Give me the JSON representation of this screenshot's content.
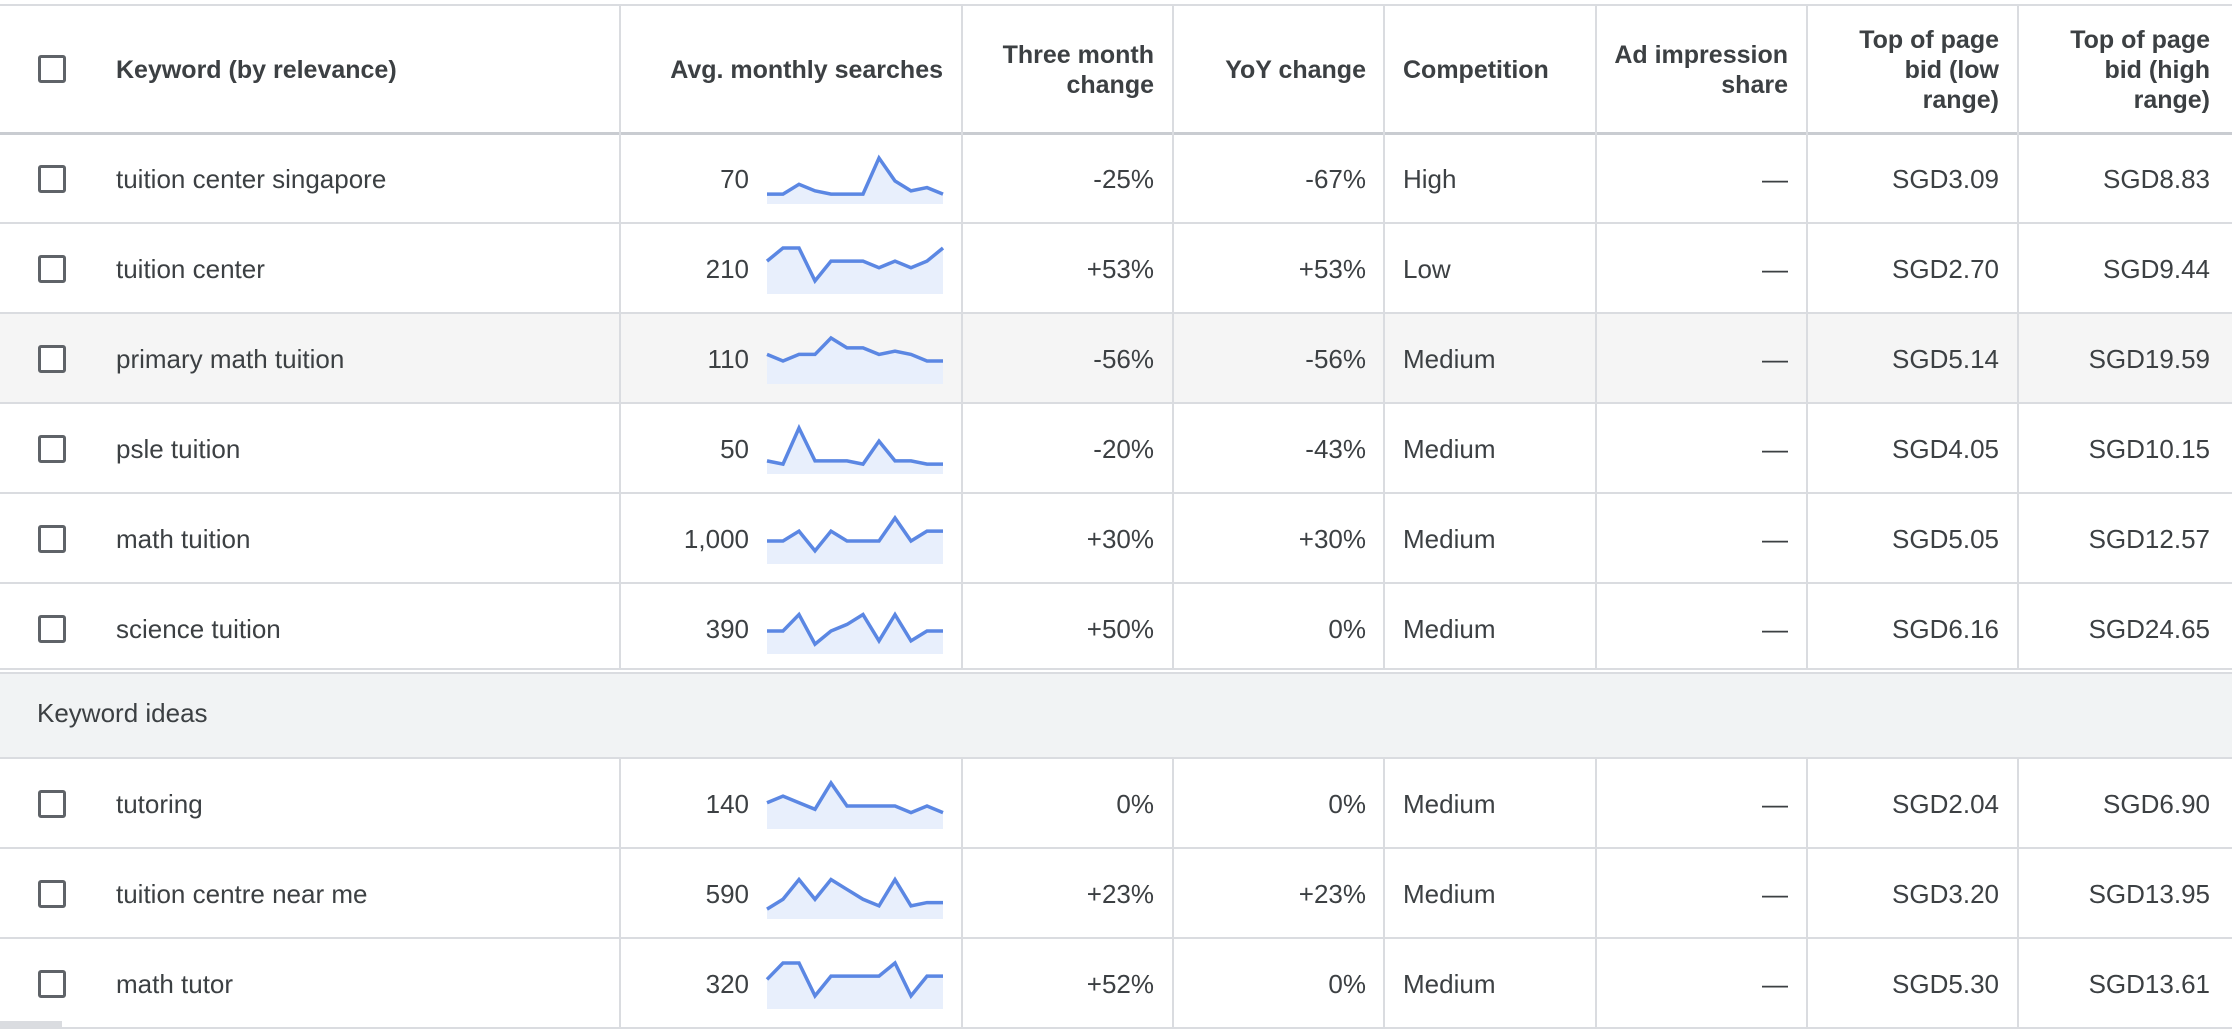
{
  "headers": {
    "keyword": "Keyword (by relevance)",
    "avg": "Avg. monthly searches",
    "three_month_line1": "Three month",
    "three_month_line2": "change",
    "yoy": "YoY change",
    "competition": "Competition",
    "ad_share_line1": "Ad impression",
    "ad_share_line2": "share",
    "bid_low_line1": "Top of page",
    "bid_low_line2": "bid (low",
    "bid_low_line3": "range)",
    "bid_high_line1": "Top of page",
    "bid_high_line2": "bid (high",
    "bid_high_line3": "range)"
  },
  "section_label": "Keyword ideas",
  "rows": [
    {
      "keyword": "tuition center singapore",
      "avg": "70",
      "three_month": "-25%",
      "yoy": "-67%",
      "competition": "High",
      "ad_share": "—",
      "bid_low": "SGD3.09",
      "bid_high": "SGD8.83",
      "trend": [
        3,
        3,
        6,
        4,
        3,
        3,
        3,
        14,
        7,
        4,
        5,
        3
      ]
    },
    {
      "keyword": "tuition center",
      "avg": "210",
      "three_month": "+53%",
      "yoy": "+53%",
      "competition": "Low",
      "ad_share": "—",
      "bid_low": "SGD2.70",
      "bid_high": "SGD9.44",
      "trend": [
        10,
        14,
        14,
        4,
        10,
        10,
        10,
        8,
        10,
        8,
        10,
        14
      ]
    },
    {
      "keyword": "primary math tuition",
      "avg": "110",
      "three_month": "-56%",
      "yoy": "-56%",
      "competition": "Medium",
      "ad_share": "—",
      "bid_low": "SGD5.14",
      "bid_high": "SGD19.59",
      "trend": [
        9,
        7,
        9,
        9,
        14,
        11,
        11,
        9,
        10,
        9,
        7,
        7
      ]
    },
    {
      "keyword": "psle tuition",
      "avg": "50",
      "three_month": "-20%",
      "yoy": "-43%",
      "competition": "Medium",
      "ad_share": "—",
      "bid_low": "SGD4.05",
      "bid_high": "SGD10.15",
      "trend": [
        4,
        3,
        14,
        4,
        4,
        4,
        3,
        10,
        4,
        4,
        3,
        3
      ]
    },
    {
      "keyword": "math tuition",
      "avg": "1,000",
      "three_month": "+30%",
      "yoy": "+30%",
      "competition": "Medium",
      "ad_share": "—",
      "bid_low": "SGD5.05",
      "bid_high": "SGD12.57",
      "trend": [
        7,
        7,
        10,
        4,
        10,
        7,
        7,
        7,
        14,
        7,
        10,
        10
      ]
    },
    {
      "keyword": "science tuition",
      "avg": "390",
      "three_month": "+50%",
      "yoy": "0%",
      "competition": "Medium",
      "ad_share": "—",
      "bid_low": "SGD6.16",
      "bid_high": "SGD24.65",
      "trend": [
        7,
        7,
        12,
        3,
        7,
        9,
        12,
        4,
        12,
        4,
        7,
        7
      ]
    }
  ],
  "idea_rows": [
    {
      "keyword": "tutoring",
      "avg": "140",
      "three_month": "0%",
      "yoy": "0%",
      "competition": "Medium",
      "ad_share": "—",
      "bid_low": "SGD2.04",
      "bid_high": "SGD6.90",
      "trend": [
        8,
        10,
        8,
        6,
        14,
        7,
        7,
        7,
        7,
        5,
        7,
        5
      ]
    },
    {
      "keyword": "tuition centre near me",
      "avg": "590",
      "three_month": "+23%",
      "yoy": "+23%",
      "competition": "Medium",
      "ad_share": "—",
      "bid_low": "SGD3.20",
      "bid_high": "SGD13.95",
      "trend": [
        3,
        6,
        12,
        6,
        12,
        9,
        6,
        4,
        12,
        4,
        5,
        5
      ]
    },
    {
      "keyword": "math tutor",
      "avg": "320",
      "three_month": "+52%",
      "yoy": "0%",
      "competition": "Medium",
      "ad_share": "—",
      "bid_low": "SGD5.30",
      "bid_high": "SGD13.61",
      "trend": [
        9,
        14,
        14,
        4,
        10,
        10,
        10,
        10,
        14,
        4,
        10,
        10
      ]
    }
  ],
  "colors": {
    "sparkline": "#5b87e3",
    "sparkline_fill": "#e8effc",
    "border": "#dadce0",
    "section_bg": "#f1f3f4",
    "hover_row_bg": "#f5f5f5"
  }
}
